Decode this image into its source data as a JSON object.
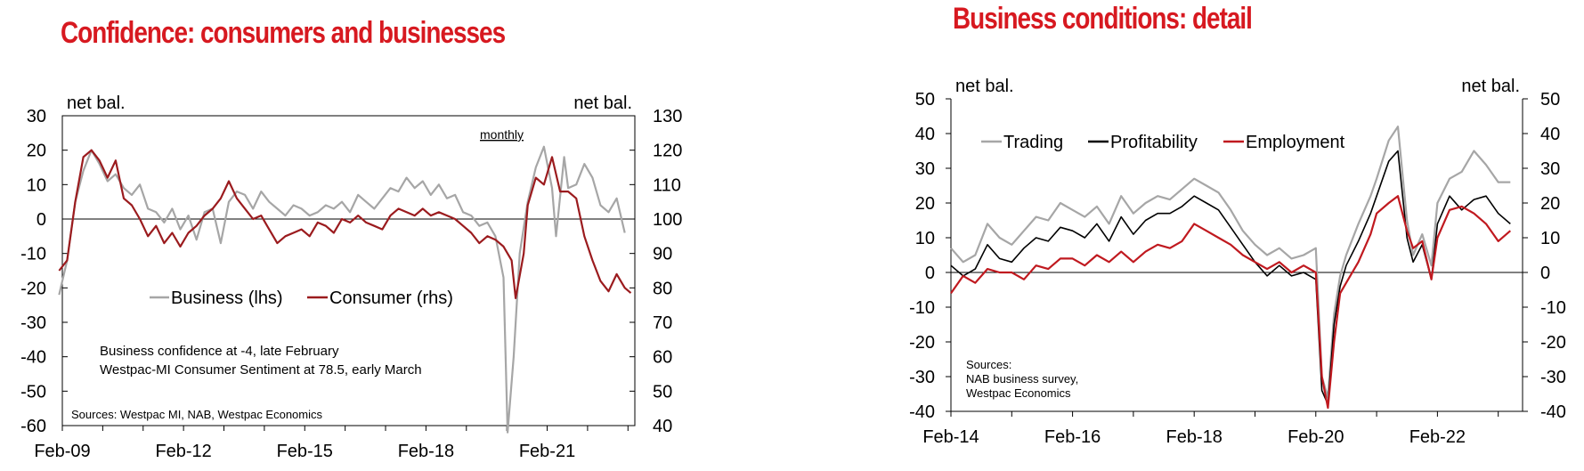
{
  "chart_data": [
    {
      "type": "line",
      "title": "Confidence: consumers and businesses",
      "left_unit": "net bal.",
      "right_unit": "net bal.",
      "note": "monthly",
      "ylim_left": [
        -60,
        30
      ],
      "ylim_right": [
        40,
        130
      ],
      "yticks_left": [
        "30",
        "20",
        "10",
        "0",
        "-10",
        "-20",
        "-30",
        "-40",
        "-50",
        "-60"
      ],
      "yticks_right": [
        "130",
        "120",
        "110",
        "100",
        "90",
        "80",
        "70",
        "60",
        "50",
        "40"
      ],
      "xlim": [
        2009.08,
        2023.25
      ],
      "xticks": [
        {
          "x": 2009.08,
          "label": "Feb-09"
        },
        {
          "x": 2012.08,
          "label": "Feb-12"
        },
        {
          "x": 2015.08,
          "label": "Feb-15"
        },
        {
          "x": 2018.08,
          "label": "Feb-18"
        },
        {
          "x": 2021.08,
          "label": "Feb-21"
        }
      ],
      "legend": [
        "Business (lhs)",
        "Consumer (rhs)"
      ],
      "annotation_lines": [
        "Business confidence at -4, late February",
        "Westpac-MI Consumer Sentiment at 78.5, early March"
      ],
      "source": "Sources: Westpac MI, NAB, Westpac Economics",
      "series": [
        {
          "name": "Business (lhs)",
          "axis": "left",
          "color": "#a6a6a6",
          "x": [
            2009.0,
            2009.2,
            2009.4,
            2009.6,
            2009.8,
            2010.0,
            2010.2,
            2010.4,
            2010.6,
            2010.8,
            2011.0,
            2011.2,
            2011.4,
            2011.6,
            2011.8,
            2012.0,
            2012.2,
            2012.4,
            2012.6,
            2012.8,
            2013.0,
            2013.2,
            2013.4,
            2013.6,
            2013.8,
            2014.0,
            2014.2,
            2014.4,
            2014.6,
            2014.8,
            2015.0,
            2015.2,
            2015.4,
            2015.6,
            2015.8,
            2016.0,
            2016.2,
            2016.4,
            2016.6,
            2016.8,
            2017.0,
            2017.2,
            2017.4,
            2017.6,
            2017.8,
            2018.0,
            2018.2,
            2018.4,
            2018.6,
            2018.8,
            2019.0,
            2019.2,
            2019.4,
            2019.6,
            2019.8,
            2020.0,
            2020.1,
            2020.25,
            2020.4,
            2020.6,
            2020.8,
            2021.0,
            2021.2,
            2021.3,
            2021.5,
            2021.6,
            2021.8,
            2022.0,
            2022.2,
            2022.4,
            2022.6,
            2022.8,
            2023.0
          ],
          "y": [
            -22,
            -12,
            5,
            14,
            20,
            16,
            11,
            13,
            9,
            7,
            10,
            3,
            2,
            -1,
            3,
            -3,
            1,
            -6,
            2,
            3,
            -7,
            5,
            8,
            7,
            3,
            8,
            5,
            3,
            1,
            4,
            3,
            1,
            2,
            4,
            3,
            5,
            2,
            7,
            5,
            3,
            6,
            9,
            8,
            12,
            9,
            11,
            7,
            10,
            6,
            7,
            2,
            1,
            -2,
            -1,
            -5,
            -17,
            -62,
            -40,
            -10,
            5,
            15,
            21,
            9,
            -5,
            18,
            9,
            10,
            16,
            12,
            4,
            2,
            6,
            -4
          ]
        },
        {
          "name": "Consumer (rhs)",
          "axis": "right",
          "color": "#9b1b1e",
          "x": [
            2009.0,
            2009.2,
            2009.4,
            2009.6,
            2009.8,
            2010.0,
            2010.2,
            2010.4,
            2010.6,
            2010.8,
            2011.0,
            2011.2,
            2011.4,
            2011.6,
            2011.8,
            2012.0,
            2012.2,
            2012.4,
            2012.6,
            2012.8,
            2013.0,
            2013.2,
            2013.4,
            2013.6,
            2013.8,
            2014.0,
            2014.2,
            2014.4,
            2014.6,
            2014.8,
            2015.0,
            2015.2,
            2015.4,
            2015.6,
            2015.8,
            2016.0,
            2016.2,
            2016.4,
            2016.6,
            2016.8,
            2017.0,
            2017.2,
            2017.4,
            2017.6,
            2017.8,
            2018.0,
            2018.2,
            2018.4,
            2018.6,
            2018.8,
            2019.0,
            2019.2,
            2019.4,
            2019.6,
            2019.8,
            2020.0,
            2020.2,
            2020.3,
            2020.5,
            2020.6,
            2020.8,
            2021.0,
            2021.2,
            2021.4,
            2021.6,
            2021.8,
            2022.0,
            2022.2,
            2022.4,
            2022.6,
            2022.8,
            2023.0,
            2023.15
          ],
          "y": [
            85,
            88,
            105,
            118,
            120,
            117,
            112,
            117,
            106,
            104,
            100,
            95,
            98,
            93,
            96,
            92,
            96,
            98,
            101,
            103,
            106,
            111,
            106,
            103,
            100,
            101,
            97,
            93,
            95,
            96,
            97,
            95,
            99,
            98,
            96,
            100,
            99,
            101,
            99,
            98,
            97,
            101,
            103,
            102,
            101,
            103,
            101,
            102,
            101,
            100,
            98,
            96,
            93,
            95,
            94,
            92,
            88,
            77,
            90,
            104,
            112,
            110,
            118,
            108,
            108,
            106,
            95,
            88,
            82,
            79,
            84,
            80,
            78.5
          ]
        }
      ]
    },
    {
      "type": "line",
      "title": "Business conditions: detail",
      "left_unit": "net bal.",
      "right_unit": "net bal.",
      "ylim": [
        -40,
        50
      ],
      "yticks": [
        "50",
        "40",
        "30",
        "20",
        "10",
        "0",
        "-10",
        "-20",
        "-30",
        "-40"
      ],
      "xlim": [
        2014.0,
        2023.4
      ],
      "xticks": [
        {
          "x": 2014.0,
          "label": "Feb-14"
        },
        {
          "x": 2016.0,
          "label": "Feb-16"
        },
        {
          "x": 2018.0,
          "label": "Feb-18"
        },
        {
          "x": 2020.0,
          "label": "Feb-20"
        },
        {
          "x": 2022.0,
          "label": "Feb-22"
        }
      ],
      "legend": [
        "Trading",
        "Profitability",
        "Employment"
      ],
      "source_lines": [
        "Sources:",
        "NAB business survey,",
        "Westpac Economics"
      ],
      "series": [
        {
          "name": "Trading",
          "color": "#a6a6a6",
          "x": [
            2014.0,
            2014.2,
            2014.4,
            2014.6,
            2014.8,
            2015.0,
            2015.2,
            2015.4,
            2015.6,
            2015.8,
            2016.0,
            2016.2,
            2016.4,
            2016.6,
            2016.8,
            2017.0,
            2017.2,
            2017.4,
            2017.6,
            2017.8,
            2018.0,
            2018.2,
            2018.4,
            2018.6,
            2018.8,
            2019.0,
            2019.2,
            2019.4,
            2019.6,
            2019.8,
            2020.0,
            2020.1,
            2020.2,
            2020.3,
            2020.4,
            2020.5,
            2020.7,
            2020.9,
            2021.0,
            2021.2,
            2021.35,
            2021.5,
            2021.6,
            2021.75,
            2021.9,
            2022.0,
            2022.2,
            2022.4,
            2022.6,
            2022.8,
            2023.0,
            2023.2
          ],
          "y": [
            7,
            3,
            5,
            14,
            10,
            8,
            12,
            16,
            15,
            20,
            18,
            16,
            19,
            14,
            22,
            17,
            20,
            22,
            21,
            24,
            27,
            25,
            23,
            18,
            12,
            8,
            5,
            7,
            4,
            5,
            7,
            -30,
            -36,
            -12,
            -1,
            5,
            14,
            22,
            27,
            38,
            42,
            15,
            5,
            11,
            2,
            20,
            27,
            29,
            35,
            31,
            26,
            26
          ]
        },
        {
          "name": "Profitability",
          "color": "#000000",
          "x": [
            2014.0,
            2014.2,
            2014.4,
            2014.6,
            2014.8,
            2015.0,
            2015.2,
            2015.4,
            2015.6,
            2015.8,
            2016.0,
            2016.2,
            2016.4,
            2016.6,
            2016.8,
            2017.0,
            2017.2,
            2017.4,
            2017.6,
            2017.8,
            2018.0,
            2018.2,
            2018.4,
            2018.6,
            2018.8,
            2019.0,
            2019.2,
            2019.4,
            2019.6,
            2019.8,
            2020.0,
            2020.1,
            2020.2,
            2020.3,
            2020.4,
            2020.5,
            2020.7,
            2020.9,
            2021.0,
            2021.2,
            2021.35,
            2021.5,
            2021.6,
            2021.75,
            2021.9,
            2022.0,
            2022.2,
            2022.4,
            2022.6,
            2022.8,
            2023.0,
            2023.2
          ],
          "y": [
            2,
            -1,
            1,
            8,
            4,
            3,
            7,
            10,
            9,
            13,
            12,
            10,
            14,
            9,
            16,
            11,
            15,
            17,
            17,
            19,
            22,
            20,
            18,
            13,
            8,
            3,
            -1,
            2,
            -1,
            0,
            -2,
            -34,
            -38,
            -15,
            -4,
            2,
            9,
            17,
            22,
            32,
            35,
            10,
            3,
            8,
            -2,
            14,
            22,
            18,
            21,
            22,
            17,
            14
          ]
        },
        {
          "name": "Employment",
          "color": "#c0191f",
          "x": [
            2014.0,
            2014.2,
            2014.4,
            2014.6,
            2014.8,
            2015.0,
            2015.2,
            2015.4,
            2015.6,
            2015.8,
            2016.0,
            2016.2,
            2016.4,
            2016.6,
            2016.8,
            2017.0,
            2017.2,
            2017.4,
            2017.6,
            2017.8,
            2018.0,
            2018.2,
            2018.4,
            2018.6,
            2018.8,
            2019.0,
            2019.2,
            2019.4,
            2019.6,
            2019.8,
            2020.0,
            2020.1,
            2020.2,
            2020.3,
            2020.4,
            2020.5,
            2020.7,
            2020.9,
            2021.0,
            2021.2,
            2021.35,
            2021.5,
            2021.6,
            2021.75,
            2021.9,
            2022.0,
            2022.2,
            2022.4,
            2022.6,
            2022.8,
            2023.0,
            2023.2
          ],
          "y": [
            -6,
            -1,
            -3,
            1,
            0,
            0,
            -2,
            2,
            1,
            4,
            4,
            2,
            5,
            3,
            6,
            3,
            6,
            8,
            7,
            9,
            14,
            12,
            10,
            8,
            5,
            3,
            1,
            3,
            0,
            2,
            0,
            -30,
            -39,
            -20,
            -6,
            -3,
            3,
            11,
            17,
            20,
            22,
            12,
            7,
            9,
            -2,
            10,
            18,
            19,
            17,
            14,
            9,
            12
          ]
        }
      ]
    }
  ]
}
